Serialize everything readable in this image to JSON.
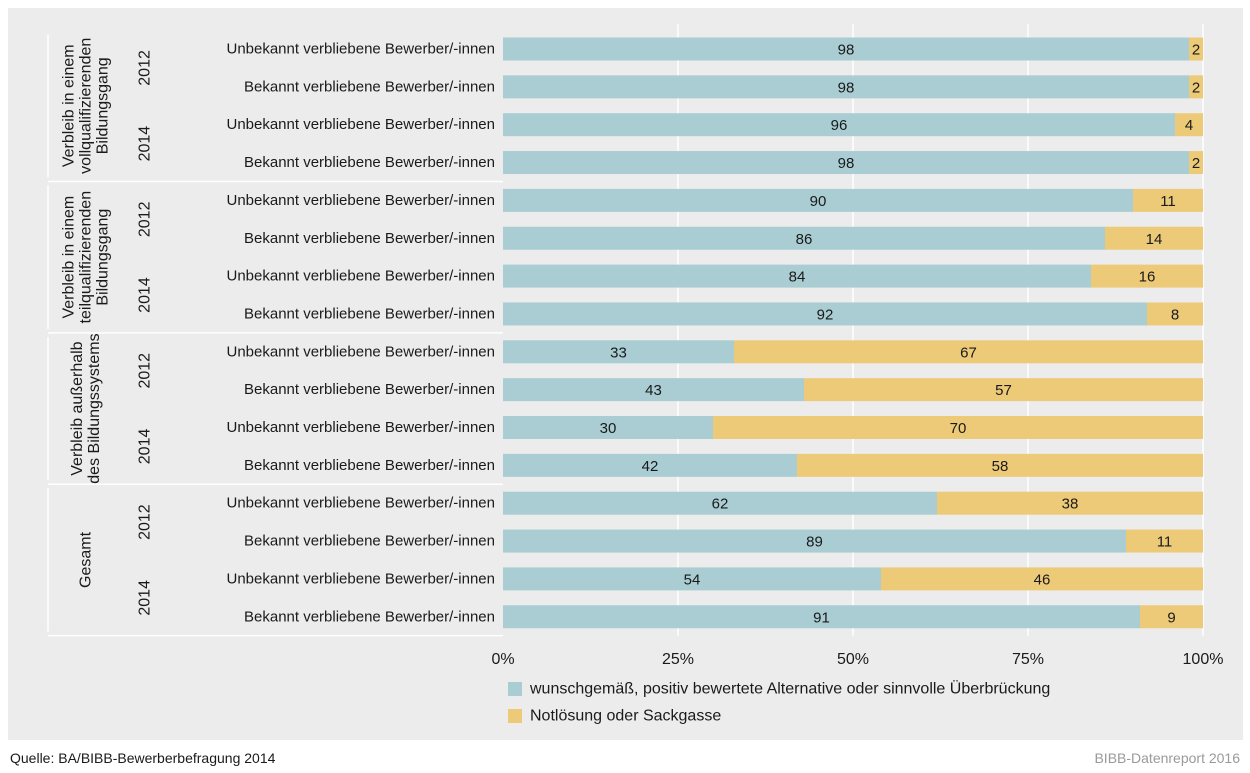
{
  "chart_data": {
    "type": "bar",
    "stacked": true,
    "orientation": "horizontal",
    "groups": [
      {
        "label": [
          "Verbleib in einem",
          "vollqualifizierenden",
          "Bildungsgang"
        ],
        "years": [
          {
            "year": "2012",
            "rows": [
              "Unbekannt verbliebene Bewerber/-innen",
              "Bekannt verbliebene Bewerber/-innen"
            ]
          },
          {
            "year": "2014",
            "rows": [
              "Unbekannt verbliebene Bewerber/-innen",
              "Bekannt verbliebene Bewerber/-innen"
            ]
          }
        ]
      },
      {
        "label": [
          "Verbleib in einem",
          "teilqualifizierenden",
          "Bildungsgang"
        ],
        "years": [
          {
            "year": "2012",
            "rows": [
              "Unbekannt verbliebene Bewerber/-innen",
              "Bekannt verbliebene Bewerber/-innen"
            ]
          },
          {
            "year": "2014",
            "rows": [
              "Unbekannt verbliebene Bewerber/-innen",
              "Bekannt verbliebene Bewerber/-innen"
            ]
          }
        ]
      },
      {
        "label": [
          "Verbleib außerhalb",
          "des Bildungssystems"
        ],
        "years": [
          {
            "year": "2012",
            "rows": [
              "Unbekannt verbliebene Bewerber/-innen",
              "Bekannt verbliebene Bewerber/-innen"
            ]
          },
          {
            "year": "2014",
            "rows": [
              "Unbekannt verbliebene Bewerber/-innen",
              "Bekannt verbliebene Bewerber/-innen"
            ]
          }
        ]
      },
      {
        "label": [
          "Gesamt"
        ],
        "years": [
          {
            "year": "2012",
            "rows": [
              "Unbekannt verbliebene Bewerber/-innen",
              "Bekannt verbliebene Bewerber/-innen"
            ]
          },
          {
            "year": "2014",
            "rows": [
              "Unbekannt verbliebene Bewerber/-innen",
              "Bekannt verbliebene Bewerber/-innen"
            ]
          }
        ]
      }
    ],
    "series": [
      {
        "name": "wunschgemäß, positiv bewertete Alternative oder sinnvolle Überbrückung",
        "color": "#a9cdd3",
        "values": [
          98,
          98,
          96,
          98,
          90,
          86,
          84,
          92,
          33,
          43,
          30,
          42,
          62,
          89,
          54,
          91
        ]
      },
      {
        "name": "Notlösung oder Sackgasse",
        "color": "#edca78",
        "values": [
          2,
          2,
          4,
          2,
          11,
          14,
          16,
          8,
          67,
          57,
          70,
          58,
          38,
          11,
          46,
          9
        ]
      }
    ],
    "xticks": [
      "0%",
      "25%",
      "50%",
      "75%",
      "100%"
    ],
    "xlim": [
      0,
      100
    ],
    "grid": true,
    "legend_position": "bottom"
  },
  "footer": {
    "source": "Quelle: BA/BIBB-Bewerberbefragung 2014",
    "credit": "BIBB-Datenreport 2016"
  }
}
